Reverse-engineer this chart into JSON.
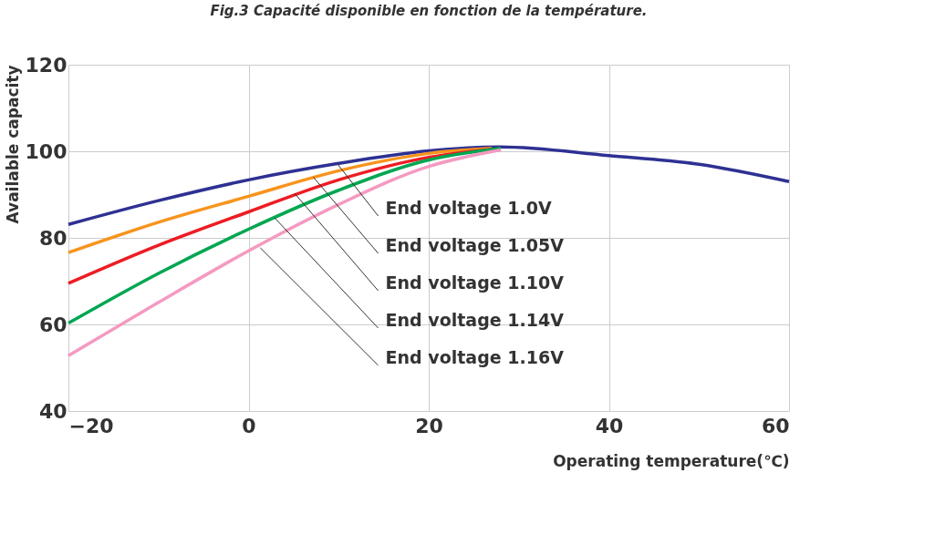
{
  "chart_data": {
    "type": "line",
    "title": "Fig.3 Capacité disponible en fonction de la température.",
    "xlabel": "Operating temperature(℃)",
    "ylabel": "Available capacity",
    "xlim": [
      -20,
      60
    ],
    "xticks": [
      {
        "value": -20,
        "label": "−20"
      },
      0,
      20,
      40,
      60
    ],
    "ylim": [
      40,
      120
    ],
    "yticks": [
      40,
      60,
      80,
      100,
      120
    ],
    "grid": true,
    "marker": "none",
    "line_style": "solid",
    "series": [
      {
        "color": "#2e3192",
        "x": [
          -20,
          -10,
          0,
          10,
          20,
          28,
          40,
          50,
          60
        ],
        "values": [
          83.1,
          88.6,
          93.4,
          97.2,
          100.1,
          101,
          99,
          97,
          93
        ]
      },
      {
        "color": "#f7941d",
        "x": [
          -20,
          -10,
          0,
          10,
          20,
          27
        ],
        "values": [
          76.6,
          83.6,
          89.6,
          95.5,
          99.5,
          100.7
        ]
      },
      {
        "color": "#ed1c24",
        "x": [
          -20,
          -10,
          0,
          10,
          20,
          27
        ],
        "values": [
          69.5,
          78.3,
          86,
          93.4,
          98.6,
          100.5
        ]
      },
      {
        "color": "#00a651",
        "x": [
          -20,
          -10,
          0,
          10,
          20,
          28
        ],
        "values": [
          60.3,
          71.8,
          82,
          91,
          98,
          100.7
        ]
      },
      {
        "color": "#f49ac1",
        "x": [
          -20,
          -10,
          0,
          10,
          20,
          28
        ],
        "values": [
          52.8,
          65.1,
          77,
          87.7,
          96.5,
          100.3
        ]
      }
    ],
    "annotations": [
      {
        "text": "End voltage 1.0V",
        "x": 9.9,
        "y": 97
      },
      {
        "text": "End voltage 1.05V",
        "x": 7.2,
        "y": 94
      },
      {
        "text": "End voltage 1.10V",
        "x": 5.1,
        "y": 90.3
      },
      {
        "text": "End voltage 1.14V",
        "x": 2.9,
        "y": 84.6
      },
      {
        "text": "End voltage 1.16V",
        "x": 1.3,
        "y": 77.7
      }
    ]
  }
}
